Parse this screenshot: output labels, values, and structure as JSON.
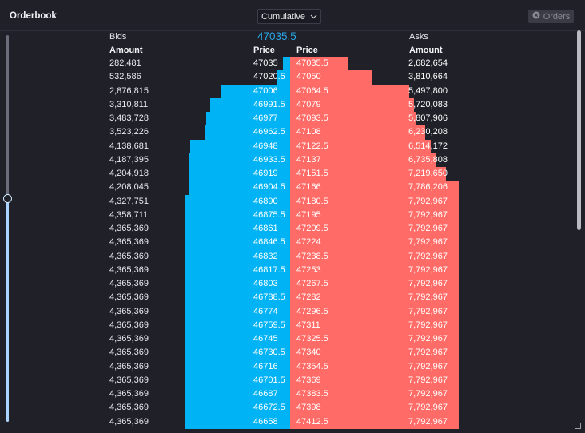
{
  "header": {
    "title": "Orderbook",
    "view_mode": "Cumulative",
    "orders_label": "Orders"
  },
  "labels": {
    "bids": "Bids",
    "asks": "Asks",
    "amount": "Amount",
    "price": "Price",
    "mid_price": "47035.5"
  },
  "colors": {
    "bid": "#00b3f4",
    "ask": "#ff6b66",
    "mid_price": "#2aa8e8"
  },
  "depth_scale": {
    "max_cumulative_amount": 7792967
  },
  "slider": {
    "level": 0.58
  },
  "bids": [
    {
      "price": "47035",
      "amount": "282,481"
    },
    {
      "price": "47020.5",
      "amount": "532,586"
    },
    {
      "price": "47006",
      "amount": "2,876,815"
    },
    {
      "price": "46991.5",
      "amount": "3,310,811"
    },
    {
      "price": "46977",
      "amount": "3,483,728"
    },
    {
      "price": "46962.5",
      "amount": "3,523,226"
    },
    {
      "price": "46948",
      "amount": "4,138,681"
    },
    {
      "price": "46933.5",
      "amount": "4,187,395"
    },
    {
      "price": "46919",
      "amount": "4,204,918"
    },
    {
      "price": "46904.5",
      "amount": "4,208,045"
    },
    {
      "price": "46890",
      "amount": "4,327,751"
    },
    {
      "price": "46875.5",
      "amount": "4,358,711"
    },
    {
      "price": "46861",
      "amount": "4,365,369"
    },
    {
      "price": "46846.5",
      "amount": "4,365,369"
    },
    {
      "price": "46832",
      "amount": "4,365,369"
    },
    {
      "price": "46817.5",
      "amount": "4,365,369"
    },
    {
      "price": "46803",
      "amount": "4,365,369"
    },
    {
      "price": "46788.5",
      "amount": "4,365,369"
    },
    {
      "price": "46774",
      "amount": "4,365,369"
    },
    {
      "price": "46759.5",
      "amount": "4,365,369"
    },
    {
      "price": "46745",
      "amount": "4,365,369"
    },
    {
      "price": "46730.5",
      "amount": "4,365,369"
    },
    {
      "price": "46716",
      "amount": "4,365,369"
    },
    {
      "price": "46701.5",
      "amount": "4,365,369"
    },
    {
      "price": "46687",
      "amount": "4,365,369"
    },
    {
      "price": "46672.5",
      "amount": "4,365,369"
    },
    {
      "price": "46658",
      "amount": "4,365,369"
    }
  ],
  "asks": [
    {
      "price": "47035.5",
      "amount": "2,682,654"
    },
    {
      "price": "47050",
      "amount": "3,810,664"
    },
    {
      "price": "47064.5",
      "amount": "5,497,800"
    },
    {
      "price": "47079",
      "amount": "5,720,083"
    },
    {
      "price": "47093.5",
      "amount": "5,807,906"
    },
    {
      "price": "47108",
      "amount": "6,230,208"
    },
    {
      "price": "47122.5",
      "amount": "6,514,172"
    },
    {
      "price": "47137",
      "amount": "6,735,808"
    },
    {
      "price": "47151.5",
      "amount": "7,219,650"
    },
    {
      "price": "47166",
      "amount": "7,786,206"
    },
    {
      "price": "47180.5",
      "amount": "7,792,967"
    },
    {
      "price": "47195",
      "amount": "7,792,967"
    },
    {
      "price": "47209.5",
      "amount": "7,792,967"
    },
    {
      "price": "47224",
      "amount": "7,792,967"
    },
    {
      "price": "47238.5",
      "amount": "7,792,967"
    },
    {
      "price": "47253",
      "amount": "7,792,967"
    },
    {
      "price": "47267.5",
      "amount": "7,792,967"
    },
    {
      "price": "47282",
      "amount": "7,792,967"
    },
    {
      "price": "47296.5",
      "amount": "7,792,967"
    },
    {
      "price": "47311",
      "amount": "7,792,967"
    },
    {
      "price": "47325.5",
      "amount": "7,792,967"
    },
    {
      "price": "47340",
      "amount": "7,792,967"
    },
    {
      "price": "47354.5",
      "amount": "7,792,967"
    },
    {
      "price": "47369",
      "amount": "7,792,967"
    },
    {
      "price": "47383.5",
      "amount": "7,792,967"
    },
    {
      "price": "47398",
      "amount": "7,792,967"
    },
    {
      "price": "47412.5",
      "amount": "7,792,967"
    }
  ]
}
